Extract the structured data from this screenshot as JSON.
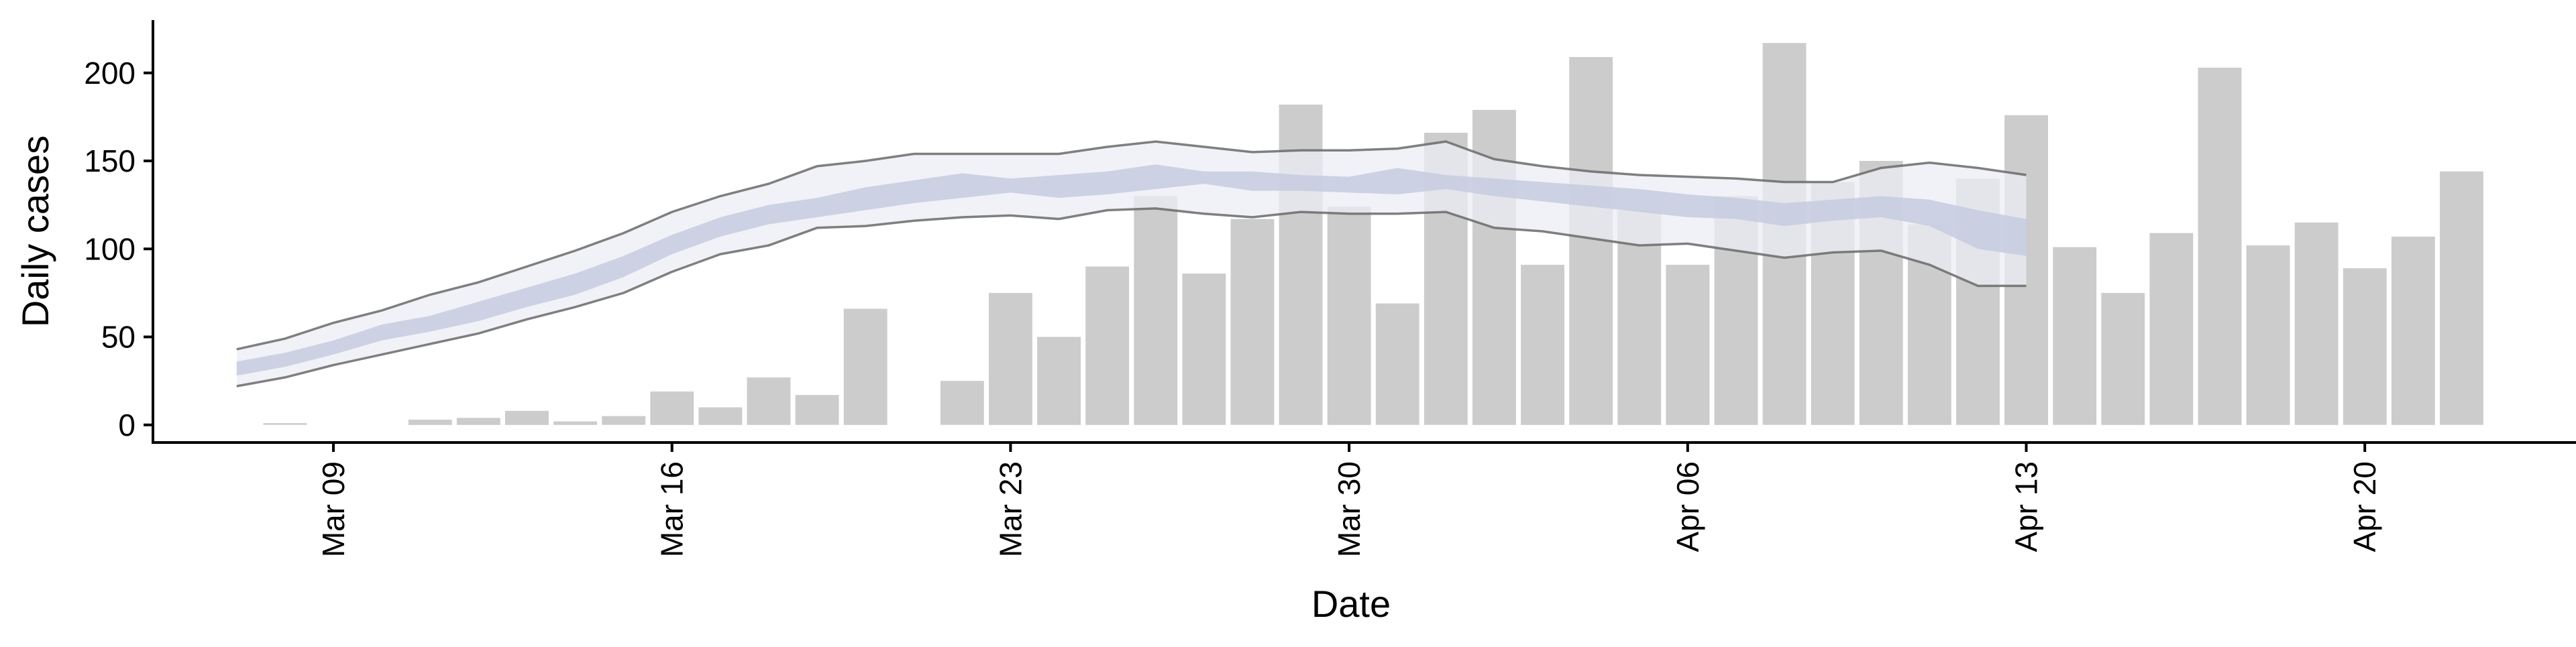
{
  "chart_data": {
    "type": "bar",
    "xlabel": "Date",
    "ylabel": "Daily cases",
    "ylim": [
      -10,
      230
    ],
    "xlim": [
      "2020-03-05",
      "2020-04-25"
    ],
    "y_ticks": [
      0,
      50,
      100,
      150,
      200
    ],
    "x_ticks": [
      {
        "date": "2020-03-09",
        "label": "Mar 09"
      },
      {
        "date": "2020-03-16",
        "label": "Mar 16"
      },
      {
        "date": "2020-03-23",
        "label": "Mar 23"
      },
      {
        "date": "2020-03-30",
        "label": "Mar 30"
      },
      {
        "date": "2020-04-06",
        "label": "Apr 06"
      },
      {
        "date": "2020-04-13",
        "label": "Apr 13"
      },
      {
        "date": "2020-04-20",
        "label": "Apr 20"
      }
    ],
    "grid": false,
    "legend": "none",
    "colors": {
      "bars": "#cccccc",
      "outer_band": "#eceef4",
      "inner_band": "#c6cce0",
      "outer_band_edge": "#6a6a6a",
      "axis": "#000000"
    },
    "series": [
      {
        "kind": "bars",
        "dates": [
          "2020-03-08",
          "2020-03-09",
          "2020-03-10",
          "2020-03-11",
          "2020-03-12",
          "2020-03-13",
          "2020-03-14",
          "2020-03-15",
          "2020-03-16",
          "2020-03-17",
          "2020-03-18",
          "2020-03-19",
          "2020-03-20",
          "2020-03-21",
          "2020-03-22",
          "2020-03-23",
          "2020-03-24",
          "2020-03-25",
          "2020-03-26",
          "2020-03-27",
          "2020-03-28",
          "2020-03-29",
          "2020-03-30",
          "2020-03-31",
          "2020-04-01",
          "2020-04-02",
          "2020-04-03",
          "2020-04-04",
          "2020-04-05",
          "2020-04-06",
          "2020-04-07",
          "2020-04-08",
          "2020-04-09",
          "2020-04-10",
          "2020-04-11",
          "2020-04-12",
          "2020-04-13",
          "2020-04-14",
          "2020-04-15",
          "2020-04-16",
          "2020-04-17",
          "2020-04-18",
          "2020-04-19",
          "2020-04-20",
          "2020-04-21",
          "2020-04-22",
          "2020-04-23"
        ],
        "values": [
          1,
          0,
          0,
          3,
          4,
          8,
          2,
          5,
          19,
          10,
          27,
          17,
          66,
          0,
          25,
          75,
          50,
          90,
          130,
          86,
          117,
          182,
          124,
          69,
          166,
          179,
          91,
          209,
          122,
          91,
          130,
          217,
          138,
          150,
          114,
          140,
          176,
          101,
          75,
          109,
          203,
          102,
          115,
          89,
          107,
          144,
          0
        ]
      },
      {
        "kind": "band",
        "dates": [
          "2020-03-07",
          "2020-03-08",
          "2020-03-09",
          "2020-03-10",
          "2020-03-11",
          "2020-03-12",
          "2020-03-13",
          "2020-03-14",
          "2020-03-15",
          "2020-03-16",
          "2020-03-17",
          "2020-03-18",
          "2020-03-19",
          "2020-03-20",
          "2020-03-21",
          "2020-03-22",
          "2020-03-23",
          "2020-03-24",
          "2020-03-25",
          "2020-03-26",
          "2020-03-27",
          "2020-03-28",
          "2020-03-29",
          "2020-03-30",
          "2020-03-31",
          "2020-04-01",
          "2020-04-02",
          "2020-04-03",
          "2020-04-04",
          "2020-04-05",
          "2020-04-06",
          "2020-04-07",
          "2020-04-08",
          "2020-04-09",
          "2020-04-10",
          "2020-04-11",
          "2020-04-12",
          "2020-04-13"
        ],
        "outer_low": [
          22,
          27,
          34,
          40,
          46,
          52,
          60,
          67,
          75,
          87,
          97,
          102,
          112,
          113,
          116,
          118,
          119,
          117,
          122,
          123,
          120,
          118,
          121,
          120,
          120,
          121,
          112,
          110,
          106,
          102,
          103,
          99,
          95,
          98,
          99,
          91,
          79,
          79
        ],
        "inner_low": [
          28,
          33,
          40,
          48,
          53,
          59,
          67,
          74,
          84,
          97,
          107,
          114,
          118,
          122,
          126,
          129,
          132,
          129,
          131,
          134,
          137,
          133,
          133,
          132,
          131,
          134,
          130,
          127,
          124,
          121,
          118,
          117,
          113,
          116,
          118,
          113,
          100,
          96
        ],
        "inner_high": [
          36,
          41,
          48,
          57,
          62,
          70,
          78,
          86,
          96,
          108,
          118,
          125,
          129,
          135,
          139,
          143,
          140,
          142,
          144,
          148,
          144,
          144,
          142,
          141,
          146,
          142,
          140,
          138,
          136,
          134,
          131,
          129,
          126,
          128,
          130,
          128,
          122,
          117
        ],
        "outer_high": [
          43,
          49,
          58,
          65,
          74,
          81,
          90,
          99,
          109,
          121,
          130,
          137,
          147,
          150,
          154,
          154,
          154,
          154,
          158,
          161,
          158,
          155,
          156,
          156,
          157,
          161,
          151,
          147,
          144,
          142,
          141,
          140,
          138,
          138,
          146,
          149,
          146,
          142
        ]
      }
    ]
  }
}
